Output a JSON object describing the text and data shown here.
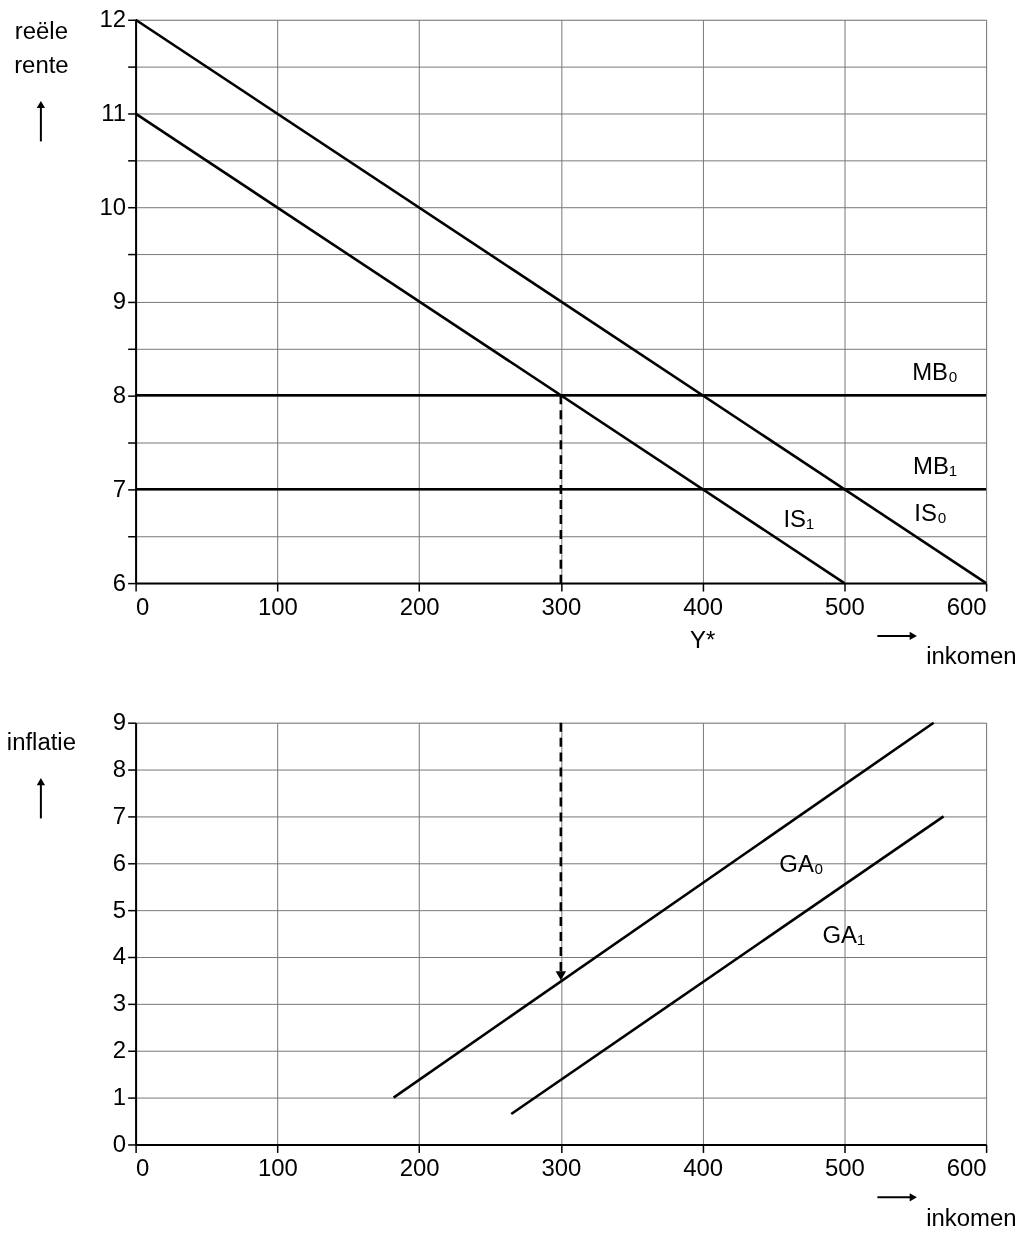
{
  "chart_data": [
    {
      "type": "line",
      "xlabel": "inkomen",
      "ylabel": "reële rente",
      "xlim": [
        0,
        600
      ],
      "xticks": [
        0,
        100,
        200,
        300,
        400,
        500,
        600
      ],
      "ylim": [
        6,
        12
      ],
      "yticks": [
        6,
        {
          "value": 6.5,
          "label": null
        },
        7,
        {
          "value": 7.5,
          "label": null
        },
        8,
        {
          "value": 8.5,
          "label": null
        },
        9,
        {
          "value": 9.5,
          "label": null
        },
        10,
        {
          "value": 10.5,
          "label": null
        },
        11,
        {
          "value": 11.5,
          "label": null
        },
        12
      ],
      "grid": true,
      "series": [
        {
          "name": "MB₀",
          "color": "#000000",
          "x": [
            0,
            600
          ],
          "values": [
            8,
            8
          ]
        },
        {
          "name": "MB₁",
          "color": "#000000",
          "x": [
            0,
            600
          ],
          "values": [
            7,
            7
          ]
        },
        {
          "name": "IS₀",
          "color": "#000000",
          "x": [
            0,
            600
          ],
          "values": [
            12,
            6
          ]
        },
        {
          "name": "IS₁",
          "color": "#000000",
          "x": [
            0,
            500
          ],
          "values": [
            11,
            6
          ]
        },
        {
          "color": "#000000",
          "x": [
            300,
            300
          ],
          "values": [
            8,
            6
          ],
          "line_style": "dashed"
        }
      ],
      "annotations": [
        "Y*"
      ]
    },
    {
      "type": "line",
      "xlabel": "inkomen",
      "ylabel": "inflatie",
      "xlim": [
        0,
        600
      ],
      "xticks": [
        0,
        100,
        200,
        300,
        400,
        500,
        600
      ],
      "ylim": [
        0,
        9
      ],
      "yticks": [
        0,
        1,
        2,
        3,
        4,
        5,
        6,
        7,
        8,
        9
      ],
      "grid": true,
      "series": [
        {
          "name": "GA₀",
          "color": "#000000",
          "x": [
            182,
            563
          ],
          "values": [
            1,
            9
          ]
        },
        {
          "name": "GA₁",
          "color": "#000000",
          "x": [
            265,
            570
          ],
          "values": [
            0.65,
            7
          ]
        },
        {
          "color": "#000000",
          "x": [
            300,
            300
          ],
          "values": [
            9,
            3.6
          ],
          "line_style": "dashed",
          "marker": "triangle"
        }
      ]
    }
  ]
}
